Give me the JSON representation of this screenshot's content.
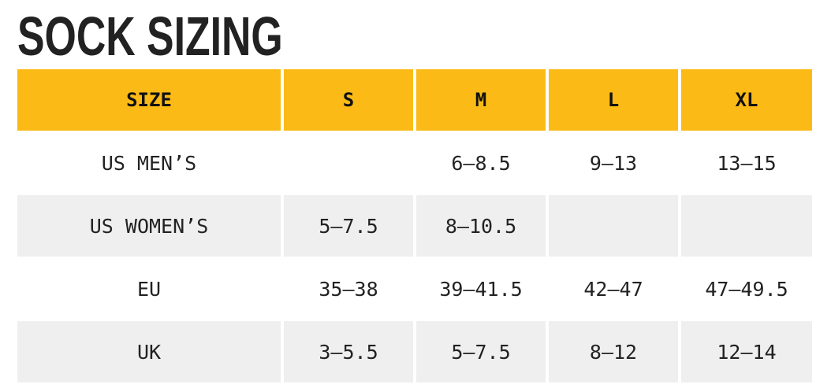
{
  "title": "SOCK SIZING",
  "table": {
    "header": [
      "SIZE",
      "S",
      "M",
      "L",
      "XL"
    ],
    "rows": [
      [
        "US MEN’S",
        null,
        "6–8.5",
        "9–13",
        "13–15"
      ],
      [
        "US WOMEN’S",
        "5–7.5",
        "8–10.5",
        null,
        null
      ],
      [
        "EU",
        "35–38",
        "39–41.5",
        "42–47",
        "47–49.5"
      ],
      [
        "UK",
        "3–5.5",
        "5–7.5",
        "8–12",
        "12–14"
      ]
    ]
  }
}
